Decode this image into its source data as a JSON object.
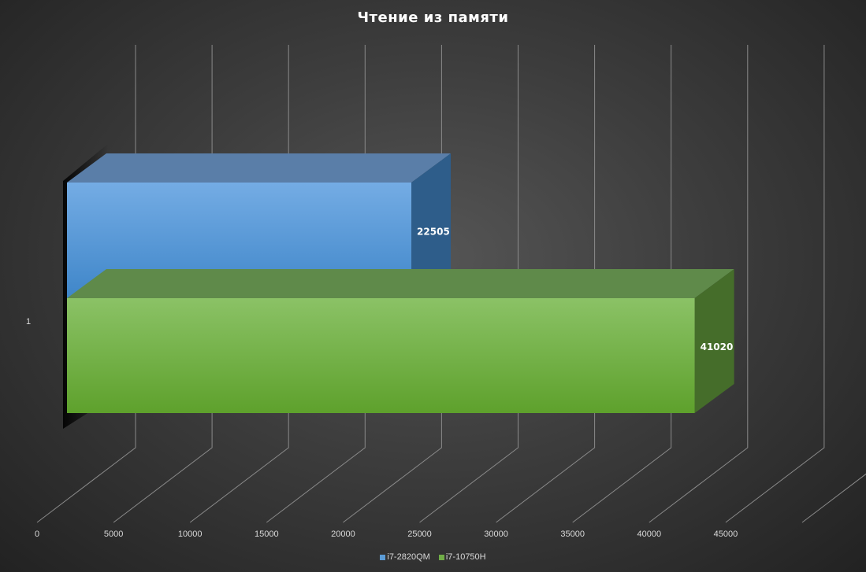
{
  "chart_data": {
    "type": "bar",
    "orientation": "horizontal",
    "style": "3d",
    "title": "Чтение из памяти",
    "categories": [
      "1"
    ],
    "series": [
      {
        "name": "i7-2820QM",
        "values": [
          22505
        ],
        "color": "#5b9bd5"
      },
      {
        "name": "i7-10750H",
        "values": [
          41020
        ],
        "color": "#70ad47"
      }
    ],
    "x_ticks": [
      "0",
      "5000",
      "10000",
      "15000",
      "20000",
      "25000",
      "30000",
      "35000",
      "40000",
      "45000"
    ],
    "xlim": [
      0,
      50000
    ],
    "grid": true,
    "legend": "bottom",
    "data_labels": true
  }
}
